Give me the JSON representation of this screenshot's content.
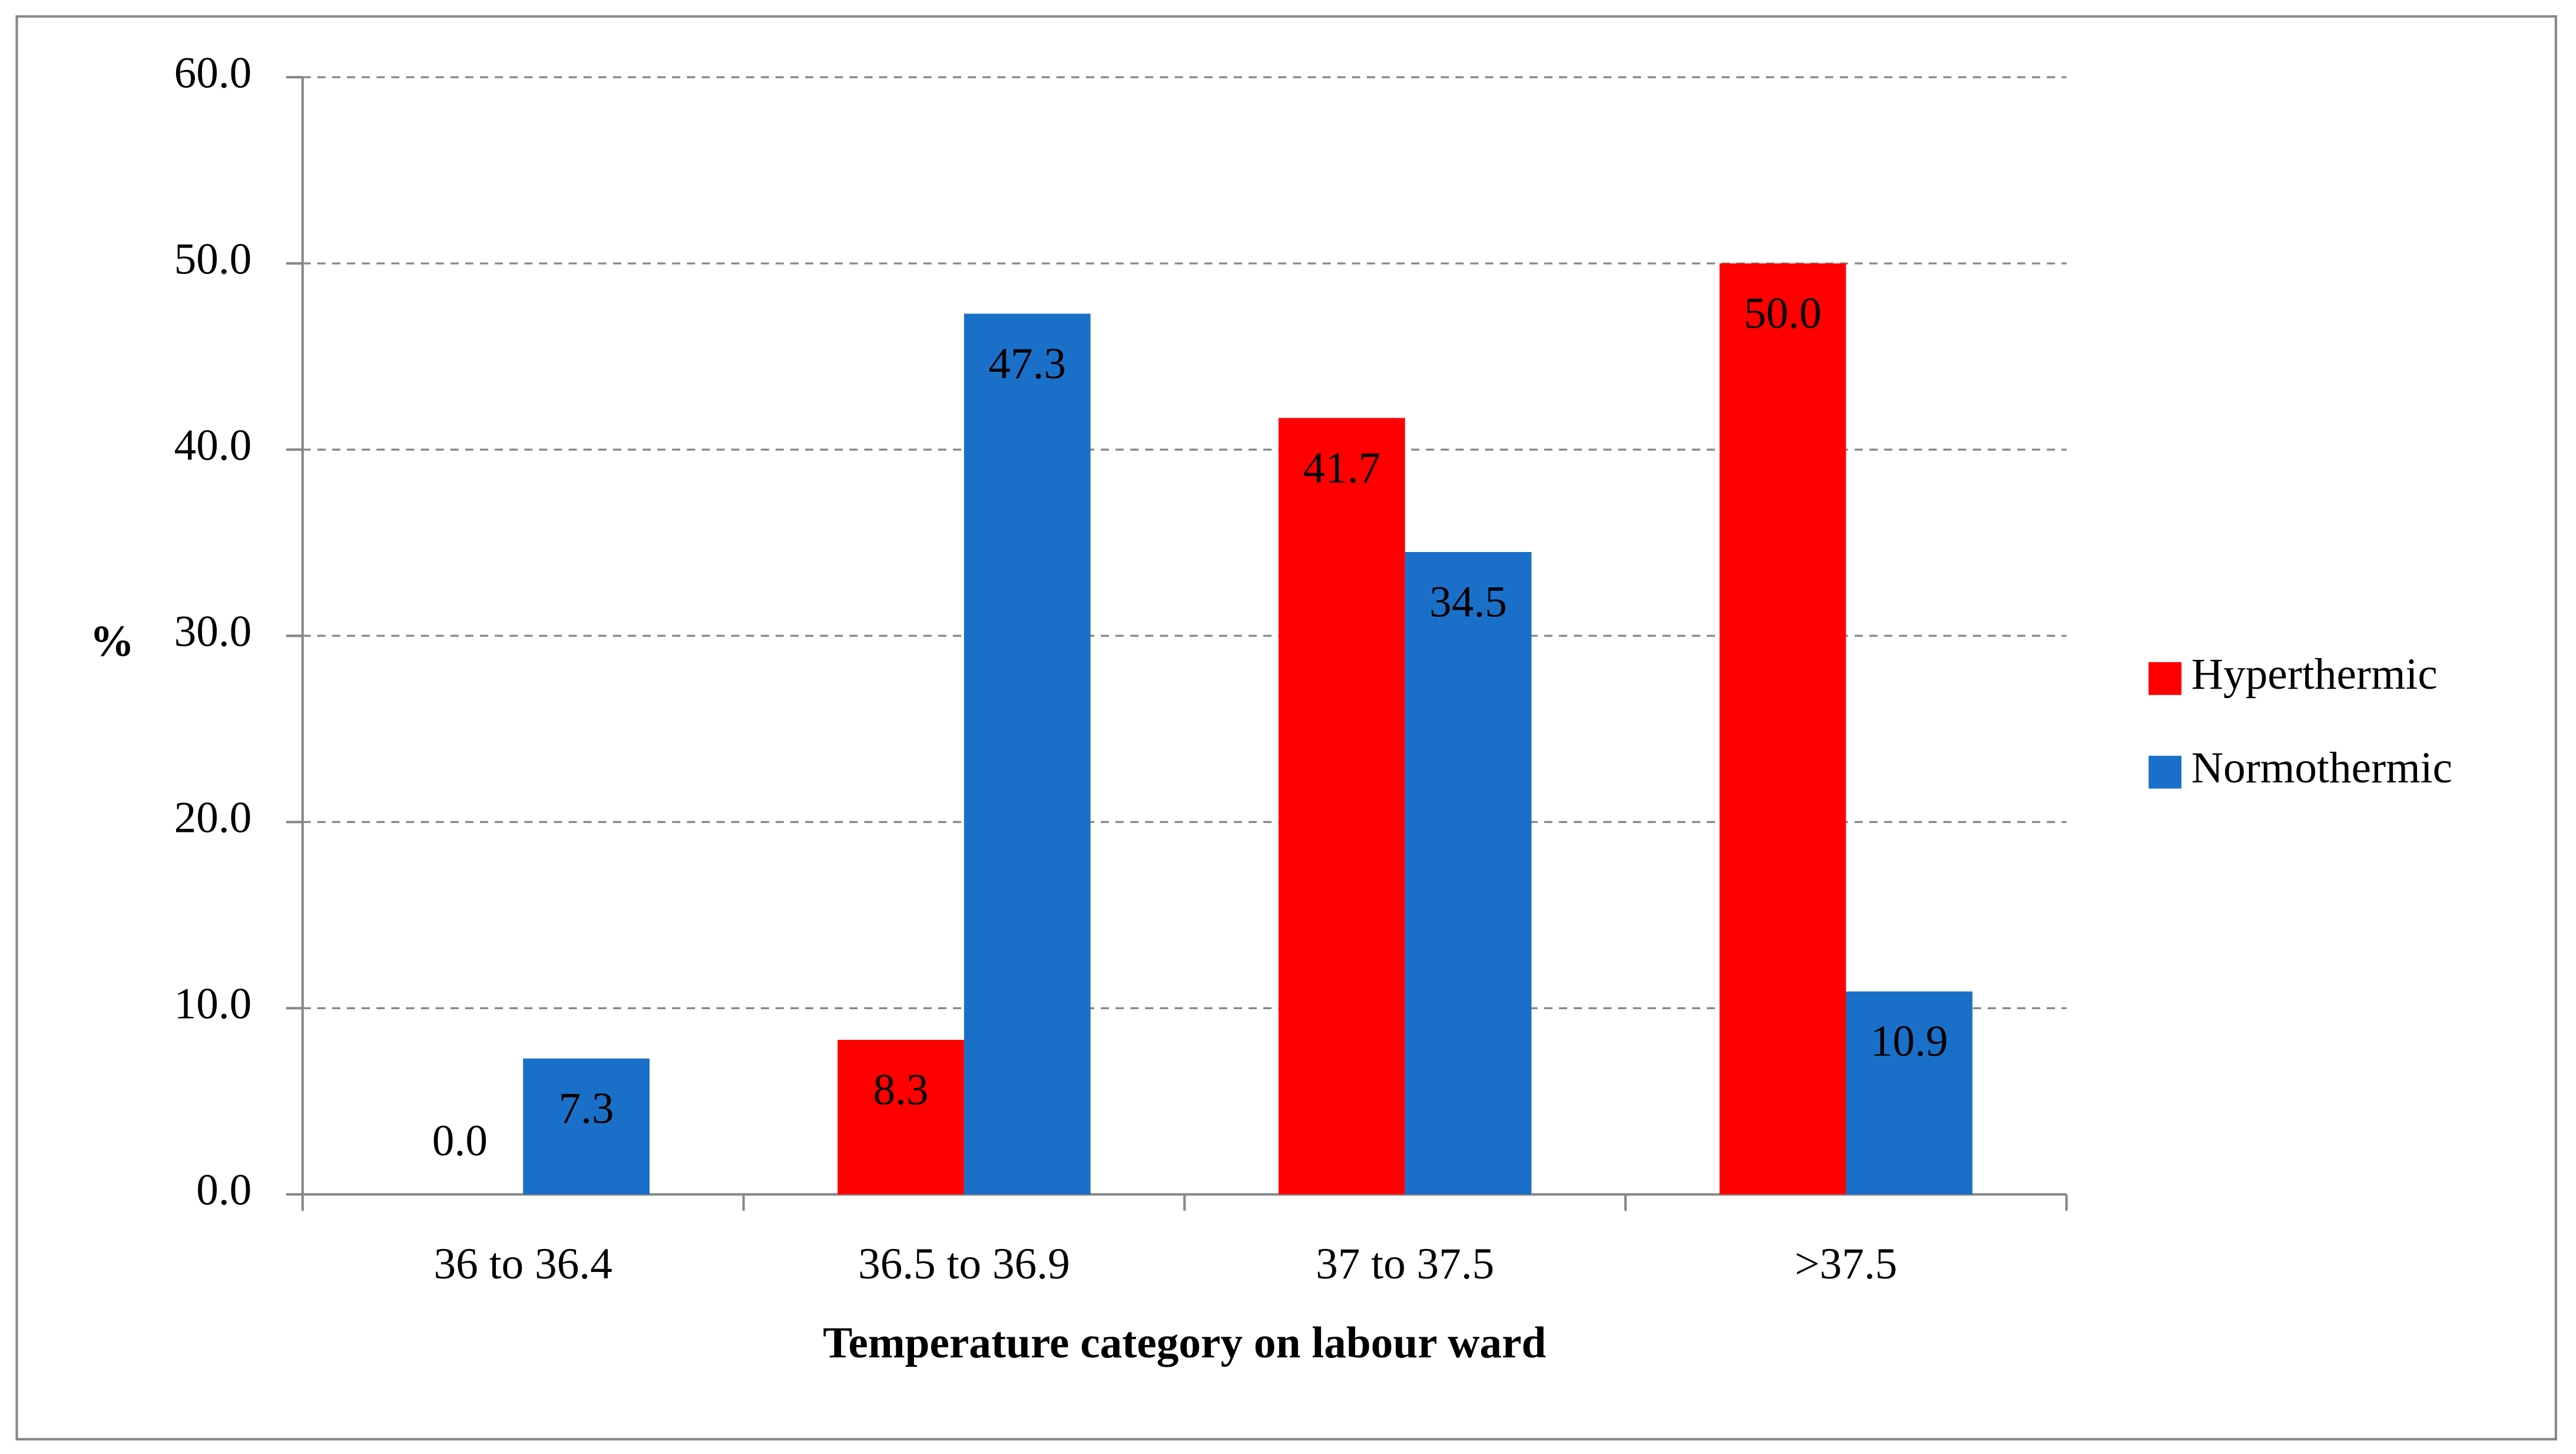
{
  "chart_data": {
    "type": "bar",
    "x_label": "Temperature category on labour ward",
    "y_label": "%",
    "categories": [
      "36 to 36.4",
      "36.5 to 36.9",
      "37 to 37.5",
      ">37.5"
    ],
    "series": [
      {
        "name": "Hyperthermic",
        "color": "#ff0000",
        "values": [
          0,
          8.3,
          41.7,
          50
        ],
        "value_labels": [
          "0.0",
          "8.3",
          "41.7",
          "50.0"
        ]
      },
      {
        "name": "Normothermic",
        "color": "#1a70c8",
        "values": [
          7.3,
          47.3,
          34.5,
          10.9
        ],
        "value_labels": [
          "7.3",
          "47.3",
          "34.5",
          "10.9"
        ]
      }
    ],
    "ylim": [
      0,
      60
    ],
    "yticks": [
      {
        "value": 0,
        "label": "0.0"
      },
      {
        "value": 10,
        "label": "10.0"
      },
      {
        "value": 20,
        "label": "20.0"
      },
      {
        "value": 30,
        "label": "30.0"
      },
      {
        "value": 40,
        "label": "40.0"
      },
      {
        "value": 50,
        "label": "50.0"
      },
      {
        "value": 60,
        "label": "60.0"
      }
    ],
    "grid": true,
    "legend": "right"
  }
}
